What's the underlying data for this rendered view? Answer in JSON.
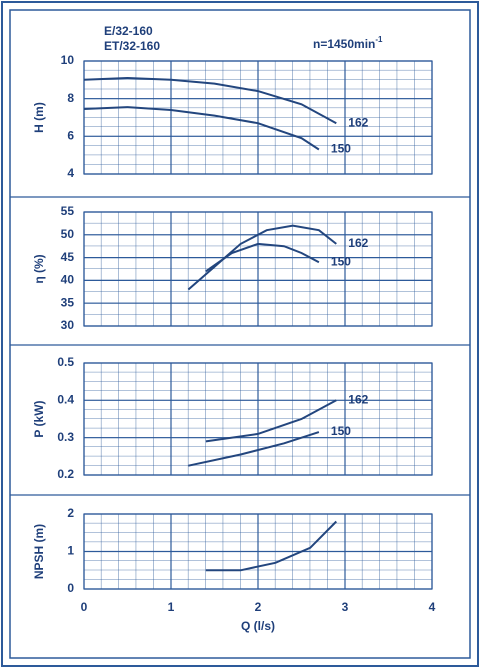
{
  "chart_data": [
    {
      "type": "line",
      "model_line_1": "E/32-160",
      "model_line_2": "ET/32-160",
      "speed_label": "n=1450min",
      "speed_exponent": "-1",
      "ylabel": "H (m)",
      "xlim": [
        0,
        4
      ],
      "xticks": [
        0,
        1,
        2,
        3,
        4
      ],
      "ylim": [
        4,
        10
      ],
      "yticks": [
        4,
        6,
        8,
        10
      ],
      "grid": true,
      "series": [
        {
          "name": "162",
          "color": "#23467e",
          "x": [
            0,
            0.5,
            1,
            1.5,
            2,
            2.5,
            2.9
          ],
          "values": [
            9.0,
            9.1,
            9.0,
            8.8,
            8.4,
            7.7,
            6.7
          ]
        },
        {
          "name": "150",
          "color": "#23467e",
          "x": [
            0,
            0.5,
            1,
            1.5,
            2,
            2.5,
            2.7
          ],
          "values": [
            7.45,
            7.55,
            7.4,
            7.1,
            6.7,
            5.9,
            5.3
          ]
        }
      ]
    },
    {
      "type": "line",
      "ylabel": "η (%)",
      "xlim": [
        0,
        4
      ],
      "xticks": [
        0,
        1,
        2,
        3,
        4
      ],
      "ylim": [
        30,
        55
      ],
      "yticks": [
        30,
        35,
        40,
        45,
        50,
        55
      ],
      "grid": true,
      "series": [
        {
          "name": "162",
          "color": "#23467e",
          "x": [
            1.2,
            1.5,
            1.8,
            2.1,
            2.4,
            2.7,
            2.9
          ],
          "values": [
            38,
            43,
            48,
            51,
            52,
            51,
            48
          ]
        },
        {
          "name": "150",
          "color": "#23467e",
          "x": [
            1.4,
            1.7,
            2.0,
            2.3,
            2.5,
            2.7
          ],
          "values": [
            42,
            46,
            48,
            47.5,
            46,
            44
          ]
        }
      ]
    },
    {
      "type": "line",
      "ylabel": "P (kW)",
      "xlim": [
        0,
        4
      ],
      "xticks": [
        0,
        1,
        2,
        3,
        4
      ],
      "ylim": [
        0.2,
        0.5
      ],
      "yticks": [
        0.2,
        0.3,
        0.4,
        0.5
      ],
      "grid": true,
      "series": [
        {
          "name": "162",
          "color": "#23467e",
          "x": [
            1.4,
            2.0,
            2.5,
            2.9
          ],
          "values": [
            0.29,
            0.31,
            0.35,
            0.4
          ]
        },
        {
          "name": "150",
          "color": "#23467e",
          "x": [
            1.2,
            1.8,
            2.3,
            2.7
          ],
          "values": [
            0.225,
            0.255,
            0.285,
            0.315
          ]
        }
      ]
    },
    {
      "type": "line",
      "ylabel": "NPSH (m)",
      "xlabel": "Q (l/s)",
      "xlim": [
        0,
        4
      ],
      "xticks": [
        0,
        1,
        2,
        3,
        4
      ],
      "ylim": [
        0,
        2
      ],
      "yticks": [
        0,
        1,
        2
      ],
      "grid": true,
      "series": [
        {
          "color": "#23467e",
          "x": [
            1.4,
            1.8,
            2.2,
            2.6,
            2.9
          ],
          "values": [
            0.5,
            0.5,
            0.7,
            1.1,
            1.8
          ]
        }
      ]
    }
  ]
}
